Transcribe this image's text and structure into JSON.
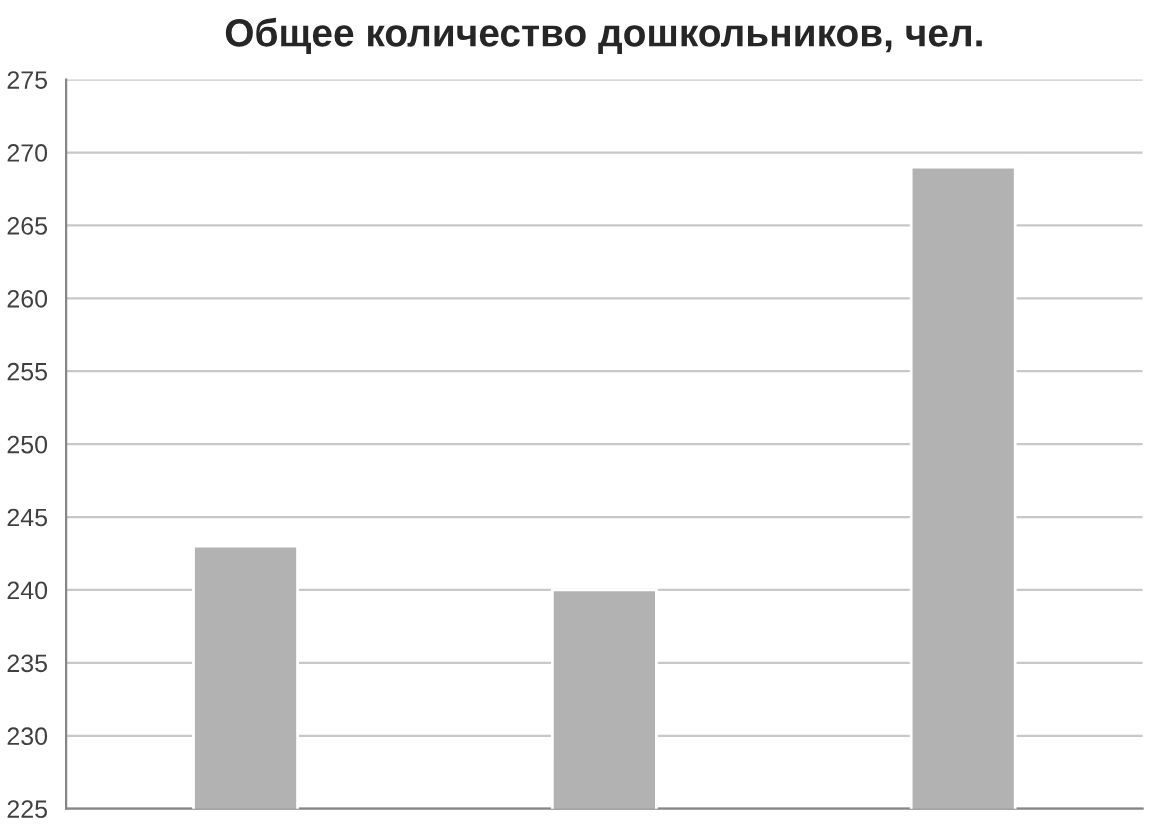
{
  "chart_data": {
    "type": "bar",
    "title": "Общее количество дошкольников, чел.",
    "categories": [
      null,
      null,
      null
    ],
    "values": [
      243,
      240,
      269
    ],
    "color": "#b2b2b2",
    "ylim": [
      225,
      275
    ],
    "yticks": [
      225,
      230,
      235,
      240,
      245,
      250,
      255,
      260,
      265,
      270,
      275
    ],
    "grid": "y"
  }
}
